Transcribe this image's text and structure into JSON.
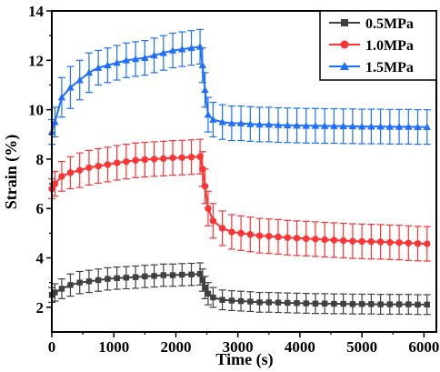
{
  "chart_data": {
    "type": "line",
    "xlabel": "Time (s)",
    "ylabel": "Strain (%)",
    "xlim": [
      0,
      6200
    ],
    "ylim": [
      1,
      14
    ],
    "xticks": [
      0,
      1000,
      2000,
      3000,
      4000,
      5000,
      6000
    ],
    "yticks": [
      2,
      4,
      6,
      8,
      10,
      12,
      14
    ],
    "legend_position": "top-right",
    "error_bars": true,
    "series": [
      {
        "name": "0.5MPa",
        "color": "#404040",
        "marker": "square",
        "x": [
          0,
          50,
          160,
          300,
          450,
          600,
          750,
          900,
          1050,
          1200,
          1350,
          1500,
          1650,
          1800,
          1950,
          2100,
          2250,
          2390,
          2430,
          2470,
          2520,
          2600,
          2750,
          2900,
          3050,
          3200,
          3350,
          3500,
          3650,
          3800,
          3950,
          4100,
          4250,
          4400,
          4550,
          4700,
          4850,
          5000,
          5150,
          5300,
          5450,
          5600,
          5750,
          5900,
          6050
        ],
        "y": [
          2.5,
          2.6,
          2.75,
          2.9,
          3.0,
          3.05,
          3.1,
          3.15,
          3.18,
          3.2,
          3.22,
          3.25,
          3.27,
          3.3,
          3.3,
          3.32,
          3.33,
          3.35,
          3.1,
          2.8,
          2.55,
          2.4,
          2.3,
          2.27,
          2.25,
          2.23,
          2.2,
          2.2,
          2.19,
          2.18,
          2.17,
          2.16,
          2.15,
          2.15,
          2.14,
          2.14,
          2.13,
          2.13,
          2.13,
          2.12,
          2.12,
          2.12,
          2.12,
          2.11,
          2.11
        ],
        "err": [
          0.3,
          0.35,
          0.4,
          0.45,
          0.45,
          0.45,
          0.45,
          0.45,
          0.45,
          0.45,
          0.45,
          0.45,
          0.45,
          0.45,
          0.45,
          0.45,
          0.45,
          0.45,
          0.45,
          0.45,
          0.45,
          0.4,
          0.4,
          0.4,
          0.4,
          0.4,
          0.4,
          0.4,
          0.4,
          0.4,
          0.4,
          0.4,
          0.4,
          0.4,
          0.4,
          0.4,
          0.4,
          0.4,
          0.4,
          0.4,
          0.4,
          0.4,
          0.4,
          0.4,
          0.4
        ]
      },
      {
        "name": "1.0MPa",
        "color": "#ff3333",
        "marker": "circle",
        "x": [
          0,
          50,
          160,
          300,
          450,
          600,
          750,
          900,
          1050,
          1200,
          1350,
          1500,
          1650,
          1800,
          1950,
          2100,
          2250,
          2390,
          2430,
          2470,
          2520,
          2600,
          2750,
          2900,
          3050,
          3200,
          3350,
          3500,
          3650,
          3800,
          3950,
          4100,
          4250,
          4400,
          4550,
          4700,
          4850,
          5000,
          5150,
          5300,
          5450,
          5600,
          5750,
          5900,
          6050
        ],
        "y": [
          6.8,
          7.0,
          7.3,
          7.45,
          7.55,
          7.65,
          7.72,
          7.78,
          7.85,
          7.9,
          7.95,
          7.98,
          8.0,
          8.02,
          8.05,
          8.06,
          8.08,
          8.1,
          7.6,
          6.9,
          6.0,
          5.5,
          5.2,
          5.05,
          5.0,
          4.95,
          4.9,
          4.88,
          4.85,
          4.82,
          4.8,
          4.78,
          4.76,
          4.74,
          4.72,
          4.7,
          4.68,
          4.67,
          4.66,
          4.65,
          4.63,
          4.62,
          4.6,
          4.58,
          4.57
        ],
        "err": [
          0.4,
          0.5,
          0.6,
          0.65,
          0.7,
          0.7,
          0.7,
          0.7,
          0.7,
          0.7,
          0.7,
          0.7,
          0.7,
          0.7,
          0.7,
          0.7,
          0.7,
          0.7,
          0.7,
          0.7,
          0.7,
          0.7,
          0.7,
          0.7,
          0.7,
          0.7,
          0.7,
          0.7,
          0.7,
          0.7,
          0.7,
          0.7,
          0.7,
          0.7,
          0.7,
          0.7,
          0.7,
          0.7,
          0.7,
          0.7,
          0.7,
          0.7,
          0.7,
          0.7,
          0.7
        ]
      },
      {
        "name": "1.5MPa",
        "color": "#1e6fff",
        "marker": "triangle",
        "x": [
          0,
          50,
          160,
          300,
          450,
          600,
          750,
          900,
          1050,
          1200,
          1350,
          1500,
          1650,
          1800,
          1950,
          2100,
          2250,
          2390,
          2430,
          2470,
          2520,
          2600,
          2750,
          2900,
          3050,
          3200,
          3350,
          3500,
          3650,
          3800,
          3950,
          4100,
          4250,
          4400,
          4550,
          4700,
          4850,
          5000,
          5150,
          5300,
          5450,
          5600,
          5750,
          5900,
          6050
        ],
        "y": [
          9.1,
          9.5,
          10.5,
          10.9,
          11.2,
          11.5,
          11.7,
          11.8,
          11.9,
          12.0,
          12.05,
          12.1,
          12.2,
          12.3,
          12.4,
          12.45,
          12.5,
          12.55,
          11.8,
          10.8,
          9.8,
          9.6,
          9.5,
          9.45,
          9.45,
          9.42,
          9.4,
          9.4,
          9.38,
          9.37,
          9.36,
          9.35,
          9.35,
          9.34,
          9.34,
          9.33,
          9.33,
          9.32,
          9.32,
          9.32,
          9.31,
          9.31,
          9.31,
          9.3,
          9.3
        ],
        "err": [
          0.5,
          0.6,
          0.8,
          0.85,
          0.8,
          0.8,
          0.7,
          0.7,
          0.7,
          0.7,
          0.7,
          0.7,
          0.7,
          0.7,
          0.7,
          0.7,
          0.7,
          0.7,
          0.7,
          0.7,
          0.7,
          0.7,
          0.7,
          0.7,
          0.7,
          0.7,
          0.7,
          0.7,
          0.7,
          0.7,
          0.7,
          0.7,
          0.7,
          0.7,
          0.7,
          0.7,
          0.7,
          0.7,
          0.7,
          0.7,
          0.7,
          0.7,
          0.7,
          0.7,
          0.7
        ]
      }
    ]
  }
}
